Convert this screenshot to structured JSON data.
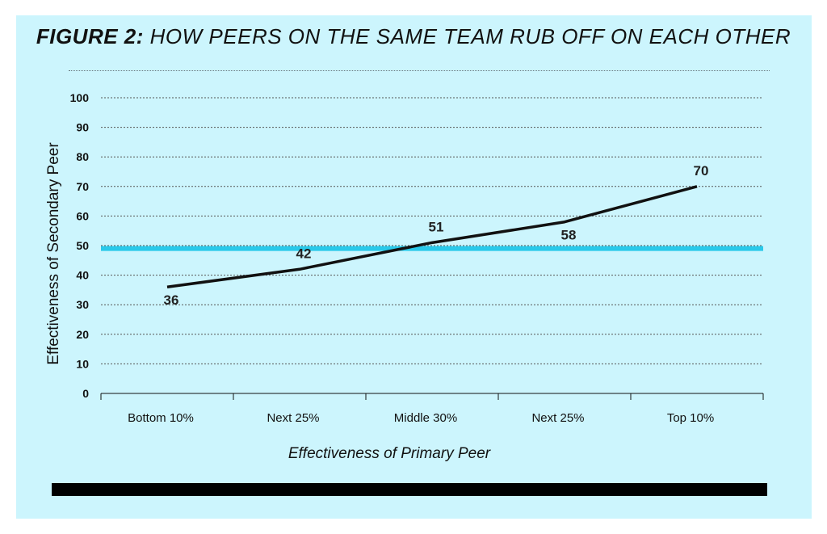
{
  "header": {
    "title_prefix": "FIGURE 2:",
    "title_text": "HOW PEERS ON THE SAME TEAM RUB OFF ON EACH OTHER"
  },
  "colors": {
    "panel_background": "#ccf5fd",
    "line": "#111111",
    "reference_line": "#29c9ea",
    "grid": "#555555"
  },
  "chart_data": {
    "type": "line",
    "xlabel": "Effectiveness of Primary Peer",
    "ylabel": "Effectiveness of Secondary Peer",
    "categories": [
      "Bottom 10%",
      "Next 25%",
      "Middle 30%",
      "Next 25%",
      "Top 10%"
    ],
    "values": [
      36,
      42,
      51,
      58,
      70
    ],
    "data_labels": [
      "36",
      "42",
      "51",
      "58",
      "70"
    ],
    "yticks": [
      "0",
      "10",
      "20",
      "30",
      "40",
      "50",
      "60",
      "70",
      "80",
      "90",
      "100"
    ],
    "ylim": [
      0,
      100
    ],
    "reference_line_y": 49,
    "grid": true,
    "grid_style": "dotted",
    "legend": "none"
  }
}
